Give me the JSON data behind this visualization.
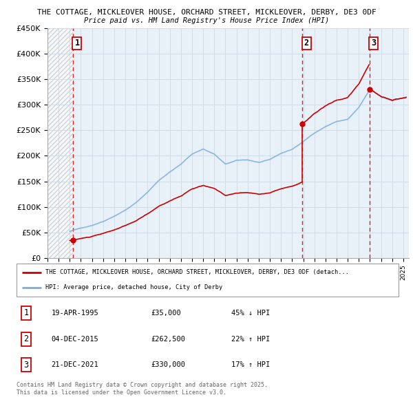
{
  "title1": "THE COTTAGE, MICKLEOVER HOUSE, ORCHARD STREET, MICKLEOVER, DERBY, DE3 0DF",
  "title2": "Price paid vs. HM Land Registry's House Price Index (HPI)",
  "ylim": [
    0,
    450000
  ],
  "yticks": [
    0,
    50000,
    100000,
    150000,
    200000,
    250000,
    300000,
    350000,
    400000,
    450000
  ],
  "ytick_labels": [
    "£0",
    "£50K",
    "£100K",
    "£150K",
    "£200K",
    "£250K",
    "£300K",
    "£350K",
    "£400K",
    "£450K"
  ],
  "xlim_start": 1993.0,
  "xlim_end": 2025.5,
  "transactions": [
    {
      "year": 1995.29,
      "price": 35000,
      "label": "1",
      "date": "19-APR-1995",
      "pct": "45%",
      "dir": "↓"
    },
    {
      "year": 2015.92,
      "price": 262500,
      "label": "2",
      "date": "04-DEC-2015",
      "pct": "22%",
      "dir": "↑"
    },
    {
      "year": 2021.97,
      "price": 330000,
      "label": "3",
      "date": "21-DEC-2021",
      "pct": "17%",
      "dir": "↑"
    }
  ],
  "legend1": "THE COTTAGE, MICKLEOVER HOUSE, ORCHARD STREET, MICKLEOVER, DERBY, DE3 0DF (detach...",
  "legend2": "HPI: Average price, detached house, City of Derby",
  "footer1": "Contains HM Land Registry data © Crown copyright and database right 2025.",
  "footer2": "This data is licensed under the Open Government Licence v3.0.",
  "red_color": "#cc0000",
  "blue_color": "#7aacdc",
  "hatch_color": "#bbbbbb",
  "grid_color": "#d0dce8",
  "bg_color": "#e8f0f8"
}
